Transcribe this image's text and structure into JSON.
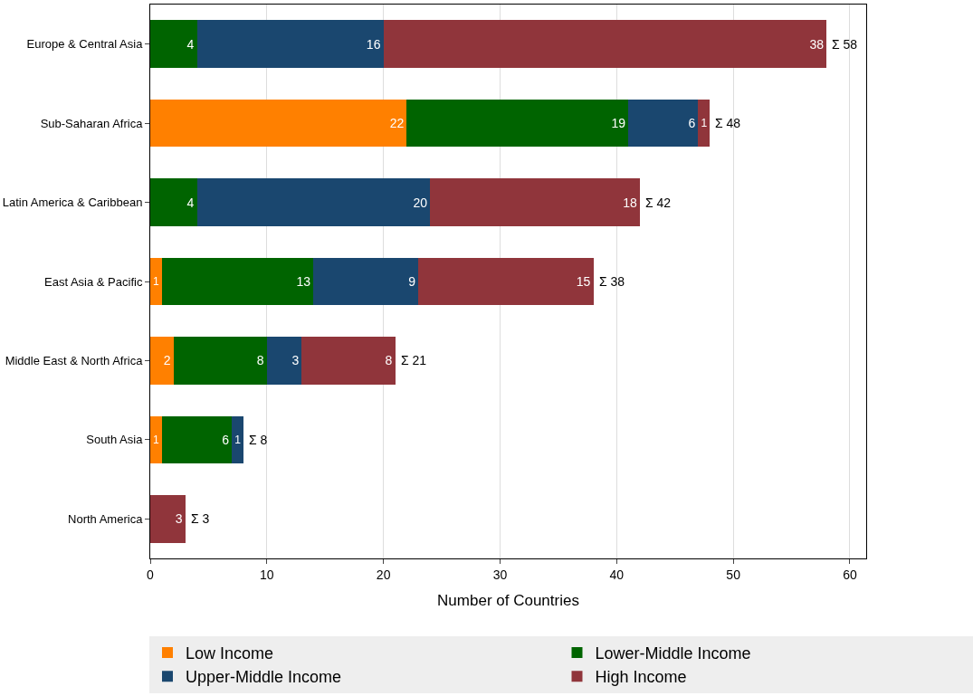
{
  "chart_data": {
    "type": "bar",
    "orientation": "horizontal",
    "stacked": true,
    "xlabel": "Number of Countries",
    "categories": [
      "Europe & Central Asia",
      "Sub-Saharan Africa",
      "Latin America & Caribbean",
      "East Asia & Pacific",
      "Middle East & North Africa",
      "South Asia",
      "North America"
    ],
    "series": [
      {
        "name": "Low Income",
        "color": "#ff8000",
        "values": [
          null,
          22,
          null,
          1,
          2,
          1,
          null
        ]
      },
      {
        "name": "Lower-Middle Income",
        "color": "#006400",
        "values": [
          4,
          19,
          4,
          13,
          8,
          6,
          null
        ]
      },
      {
        "name": "Upper-Middle Income",
        "color": "#1a476f",
        "values": [
          16,
          6,
          20,
          9,
          3,
          1,
          null
        ]
      },
      {
        "name": "High Income",
        "color": "#90353b",
        "values": [
          38,
          1,
          18,
          15,
          8,
          null,
          3
        ]
      }
    ],
    "totals": [
      "Σ 58",
      "Σ 48",
      "Σ 42",
      "Σ 38",
      "Σ 21",
      "Σ 8",
      "Σ 3"
    ],
    "data_labels": true,
    "xlim": [
      0,
      61.4
    ],
    "xticks": [
      0,
      10,
      20,
      30,
      40,
      50,
      60
    ],
    "grid": "x",
    "legend": "bottom"
  }
}
